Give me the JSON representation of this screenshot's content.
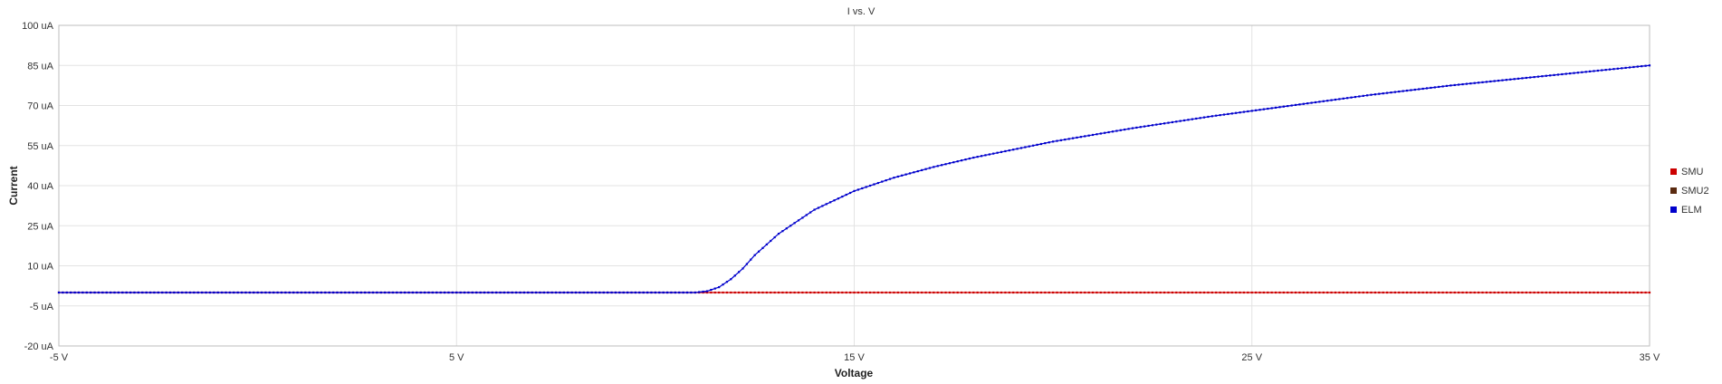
{
  "chart_data": {
    "type": "line",
    "title": "I vs. V",
    "xlabel": "Voltage",
    "ylabel": "Current",
    "x_unit": "V",
    "y_unit": "uA",
    "xlim": [
      -5,
      35
    ],
    "ylim": [
      -20,
      100
    ],
    "x_ticks": [
      -5,
      5,
      15,
      25,
      35
    ],
    "x_tick_labels": [
      "-5 V",
      "5 V",
      "15 V",
      "25 V",
      "35 V"
    ],
    "y_ticks": [
      -20,
      -5,
      10,
      25,
      40,
      55,
      70,
      85,
      100
    ],
    "y_tick_labels": [
      "-20 uA",
      "-5 uA",
      "10 uA",
      "25 uA",
      "40 uA",
      "55 uA",
      "70 uA",
      "85 uA",
      "100 uA"
    ],
    "grid": true,
    "legend_position": "right",
    "series": [
      {
        "name": "SMU",
        "color": "#cc0000",
        "x": [
          -5,
          0,
          5,
          10,
          11,
          15,
          20,
          25,
          30,
          35
        ],
        "y": [
          0,
          0,
          0,
          0,
          0,
          0,
          0,
          0,
          0,
          0
        ]
      },
      {
        "name": "SMU2",
        "color": "#5a2a10",
        "x": [],
        "y": []
      },
      {
        "name": "ELM",
        "color": "#0000cc",
        "x": [
          -5,
          0,
          5,
          10,
          11,
          11.3,
          11.6,
          11.9,
          12.2,
          12.5,
          12.8,
          13.1,
          13.5,
          14,
          15,
          16,
          17,
          18,
          19,
          20,
          22,
          24,
          26,
          28,
          30,
          32,
          34,
          35
        ],
        "y": [
          0,
          0,
          0,
          0,
          0,
          0.5,
          2,
          5,
          9,
          14,
          18,
          22,
          26,
          31,
          38,
          43,
          47,
          50.5,
          53.5,
          56.5,
          61.5,
          66,
          70,
          74,
          77.5,
          80.5,
          83.5,
          85
        ]
      }
    ]
  }
}
